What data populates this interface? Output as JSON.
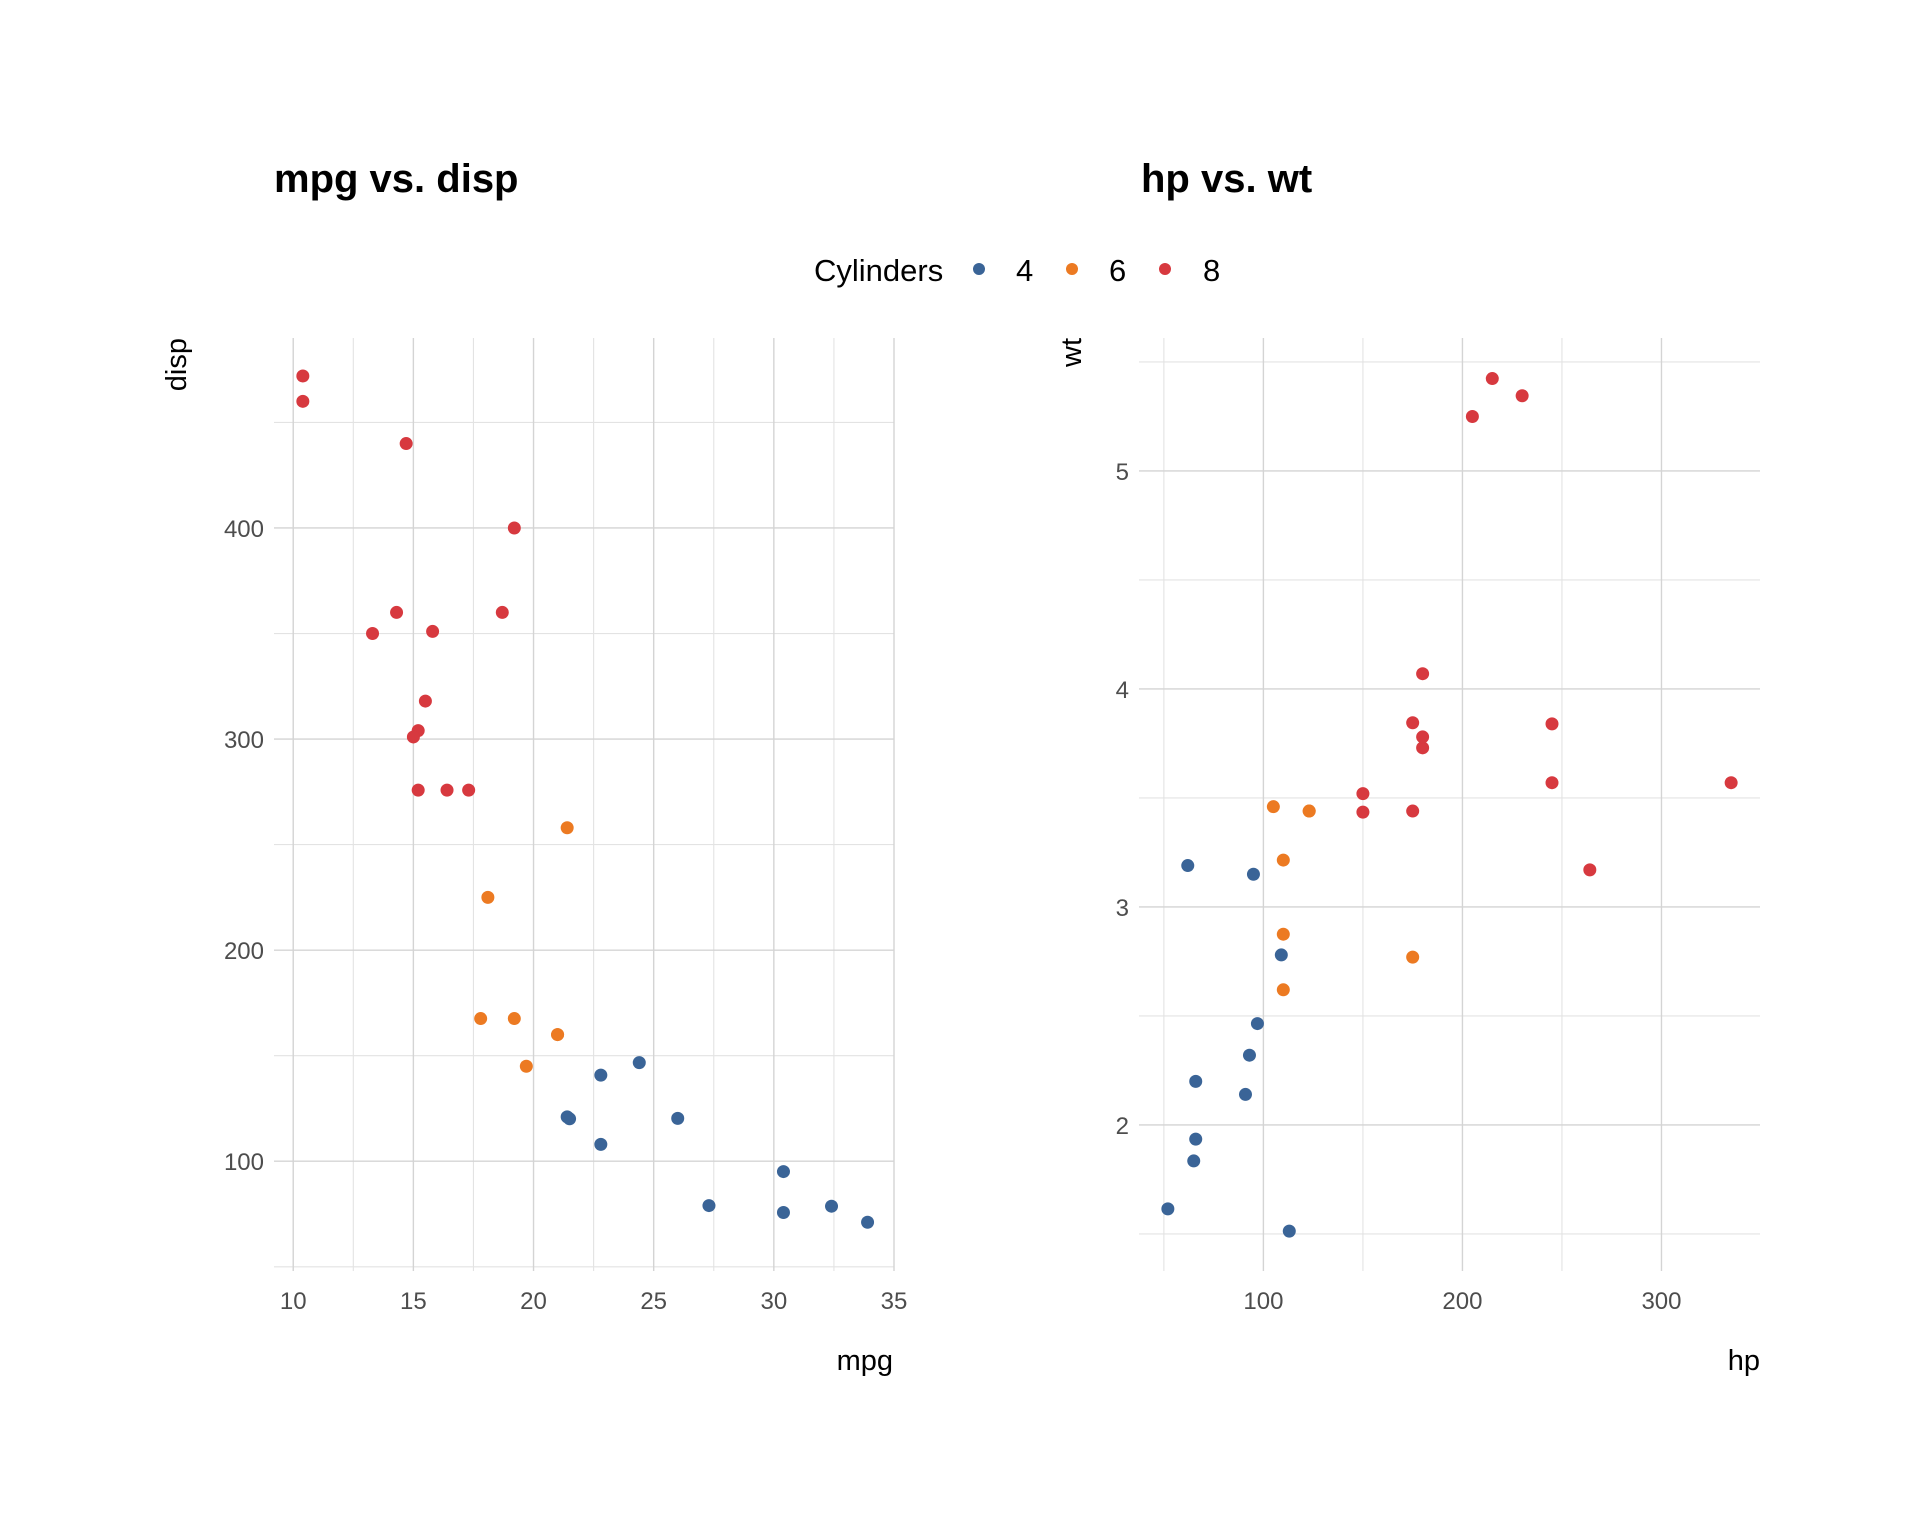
{
  "legend": {
    "title": "Cylinders",
    "entries": [
      {
        "label": "4",
        "color": "#3A6497"
      },
      {
        "label": "6",
        "color": "#EC7A22"
      },
      {
        "label": "8",
        "color": "#D7393F"
      }
    ]
  },
  "chart_data": [
    {
      "type": "scatter",
      "title": "mpg vs. disp",
      "xlabel": "mpg",
      "ylabel": "disp",
      "xlim": [
        9.2,
        35.0
      ],
      "ylim": [
        48,
        490
      ],
      "xticks": [
        10,
        15,
        20,
        25,
        30,
        35
      ],
      "yticks": [
        100,
        200,
        300,
        400
      ],
      "grid": true,
      "color_by": "cyl",
      "points": [
        {
          "x": 21,
          "y": 160,
          "cyl": "6"
        },
        {
          "x": 21,
          "y": 160,
          "cyl": "6"
        },
        {
          "x": 22.8,
          "y": 108,
          "cyl": "4"
        },
        {
          "x": 21.4,
          "y": 258,
          "cyl": "6"
        },
        {
          "x": 18.7,
          "y": 360,
          "cyl": "8"
        },
        {
          "x": 18.1,
          "y": 225,
          "cyl": "6"
        },
        {
          "x": 14.3,
          "y": 360,
          "cyl": "8"
        },
        {
          "x": 24.4,
          "y": 146.7,
          "cyl": "4"
        },
        {
          "x": 22.8,
          "y": 140.8,
          "cyl": "4"
        },
        {
          "x": 19.2,
          "y": 167.6,
          "cyl": "6"
        },
        {
          "x": 17.8,
          "y": 167.6,
          "cyl": "6"
        },
        {
          "x": 16.4,
          "y": 275.8,
          "cyl": "8"
        },
        {
          "x": 17.3,
          "y": 275.8,
          "cyl": "8"
        },
        {
          "x": 15.2,
          "y": 275.8,
          "cyl": "8"
        },
        {
          "x": 10.4,
          "y": 472,
          "cyl": "8"
        },
        {
          "x": 10.4,
          "y": 460,
          "cyl": "8"
        },
        {
          "x": 14.7,
          "y": 440,
          "cyl": "8"
        },
        {
          "x": 32.4,
          "y": 78.7,
          "cyl": "4"
        },
        {
          "x": 30.4,
          "y": 75.7,
          "cyl": "4"
        },
        {
          "x": 33.9,
          "y": 71.1,
          "cyl": "4"
        },
        {
          "x": 21.5,
          "y": 120.1,
          "cyl": "4"
        },
        {
          "x": 15.5,
          "y": 318,
          "cyl": "8"
        },
        {
          "x": 15.2,
          "y": 304,
          "cyl": "8"
        },
        {
          "x": 13.3,
          "y": 350,
          "cyl": "8"
        },
        {
          "x": 19.2,
          "y": 400,
          "cyl": "8"
        },
        {
          "x": 27.3,
          "y": 79,
          "cyl": "4"
        },
        {
          "x": 26,
          "y": 120.3,
          "cyl": "4"
        },
        {
          "x": 30.4,
          "y": 95.1,
          "cyl": "4"
        },
        {
          "x": 15.8,
          "y": 351,
          "cyl": "8"
        },
        {
          "x": 19.7,
          "y": 145,
          "cyl": "6"
        },
        {
          "x": 15,
          "y": 301,
          "cyl": "8"
        },
        {
          "x": 21.4,
          "y": 121,
          "cyl": "4"
        }
      ]
    },
    {
      "type": "scatter",
      "title": "hp vs. wt",
      "xlabel": "hp",
      "ylabel": "wt",
      "xlim": [
        37.5,
        349.5
      ],
      "ylim": [
        1.33,
        5.61
      ],
      "xticks": [
        100,
        200,
        300
      ],
      "yticks": [
        2,
        3,
        4,
        5
      ],
      "grid": true,
      "color_by": "cyl",
      "points": [
        {
          "x": 110,
          "y": 2.62,
          "cyl": "6"
        },
        {
          "x": 110,
          "y": 2.875,
          "cyl": "6"
        },
        {
          "x": 93,
          "y": 2.32,
          "cyl": "4"
        },
        {
          "x": 110,
          "y": 3.215,
          "cyl": "6"
        },
        {
          "x": 175,
          "y": 3.44,
          "cyl": "8"
        },
        {
          "x": 105,
          "y": 3.46,
          "cyl": "6"
        },
        {
          "x": 245,
          "y": 3.57,
          "cyl": "8"
        },
        {
          "x": 62,
          "y": 3.19,
          "cyl": "4"
        },
        {
          "x": 95,
          "y": 3.15,
          "cyl": "4"
        },
        {
          "x": 123,
          "y": 3.44,
          "cyl": "6"
        },
        {
          "x": 123,
          "y": 3.44,
          "cyl": "6"
        },
        {
          "x": 180,
          "y": 4.07,
          "cyl": "8"
        },
        {
          "x": 180,
          "y": 3.73,
          "cyl": "8"
        },
        {
          "x": 180,
          "y": 3.78,
          "cyl": "8"
        },
        {
          "x": 205,
          "y": 5.25,
          "cyl": "8"
        },
        {
          "x": 215,
          "y": 5.424,
          "cyl": "8"
        },
        {
          "x": 230,
          "y": 5.345,
          "cyl": "8"
        },
        {
          "x": 66,
          "y": 2.2,
          "cyl": "4"
        },
        {
          "x": 52,
          "y": 1.615,
          "cyl": "4"
        },
        {
          "x": 65,
          "y": 1.835,
          "cyl": "4"
        },
        {
          "x": 97,
          "y": 2.465,
          "cyl": "4"
        },
        {
          "x": 150,
          "y": 3.52,
          "cyl": "8"
        },
        {
          "x": 150,
          "y": 3.435,
          "cyl": "8"
        },
        {
          "x": 245,
          "y": 3.84,
          "cyl": "8"
        },
        {
          "x": 175,
          "y": 3.845,
          "cyl": "8"
        },
        {
          "x": 66,
          "y": 1.935,
          "cyl": "4"
        },
        {
          "x": 91,
          "y": 2.14,
          "cyl": "4"
        },
        {
          "x": 113,
          "y": 1.513,
          "cyl": "4"
        },
        {
          "x": 264,
          "y": 3.17,
          "cyl": "8"
        },
        {
          "x": 175,
          "y": 2.77,
          "cyl": "6"
        },
        {
          "x": 335,
          "y": 3.57,
          "cyl": "8"
        },
        {
          "x": 109,
          "y": 2.78,
          "cyl": "4"
        }
      ]
    }
  ]
}
